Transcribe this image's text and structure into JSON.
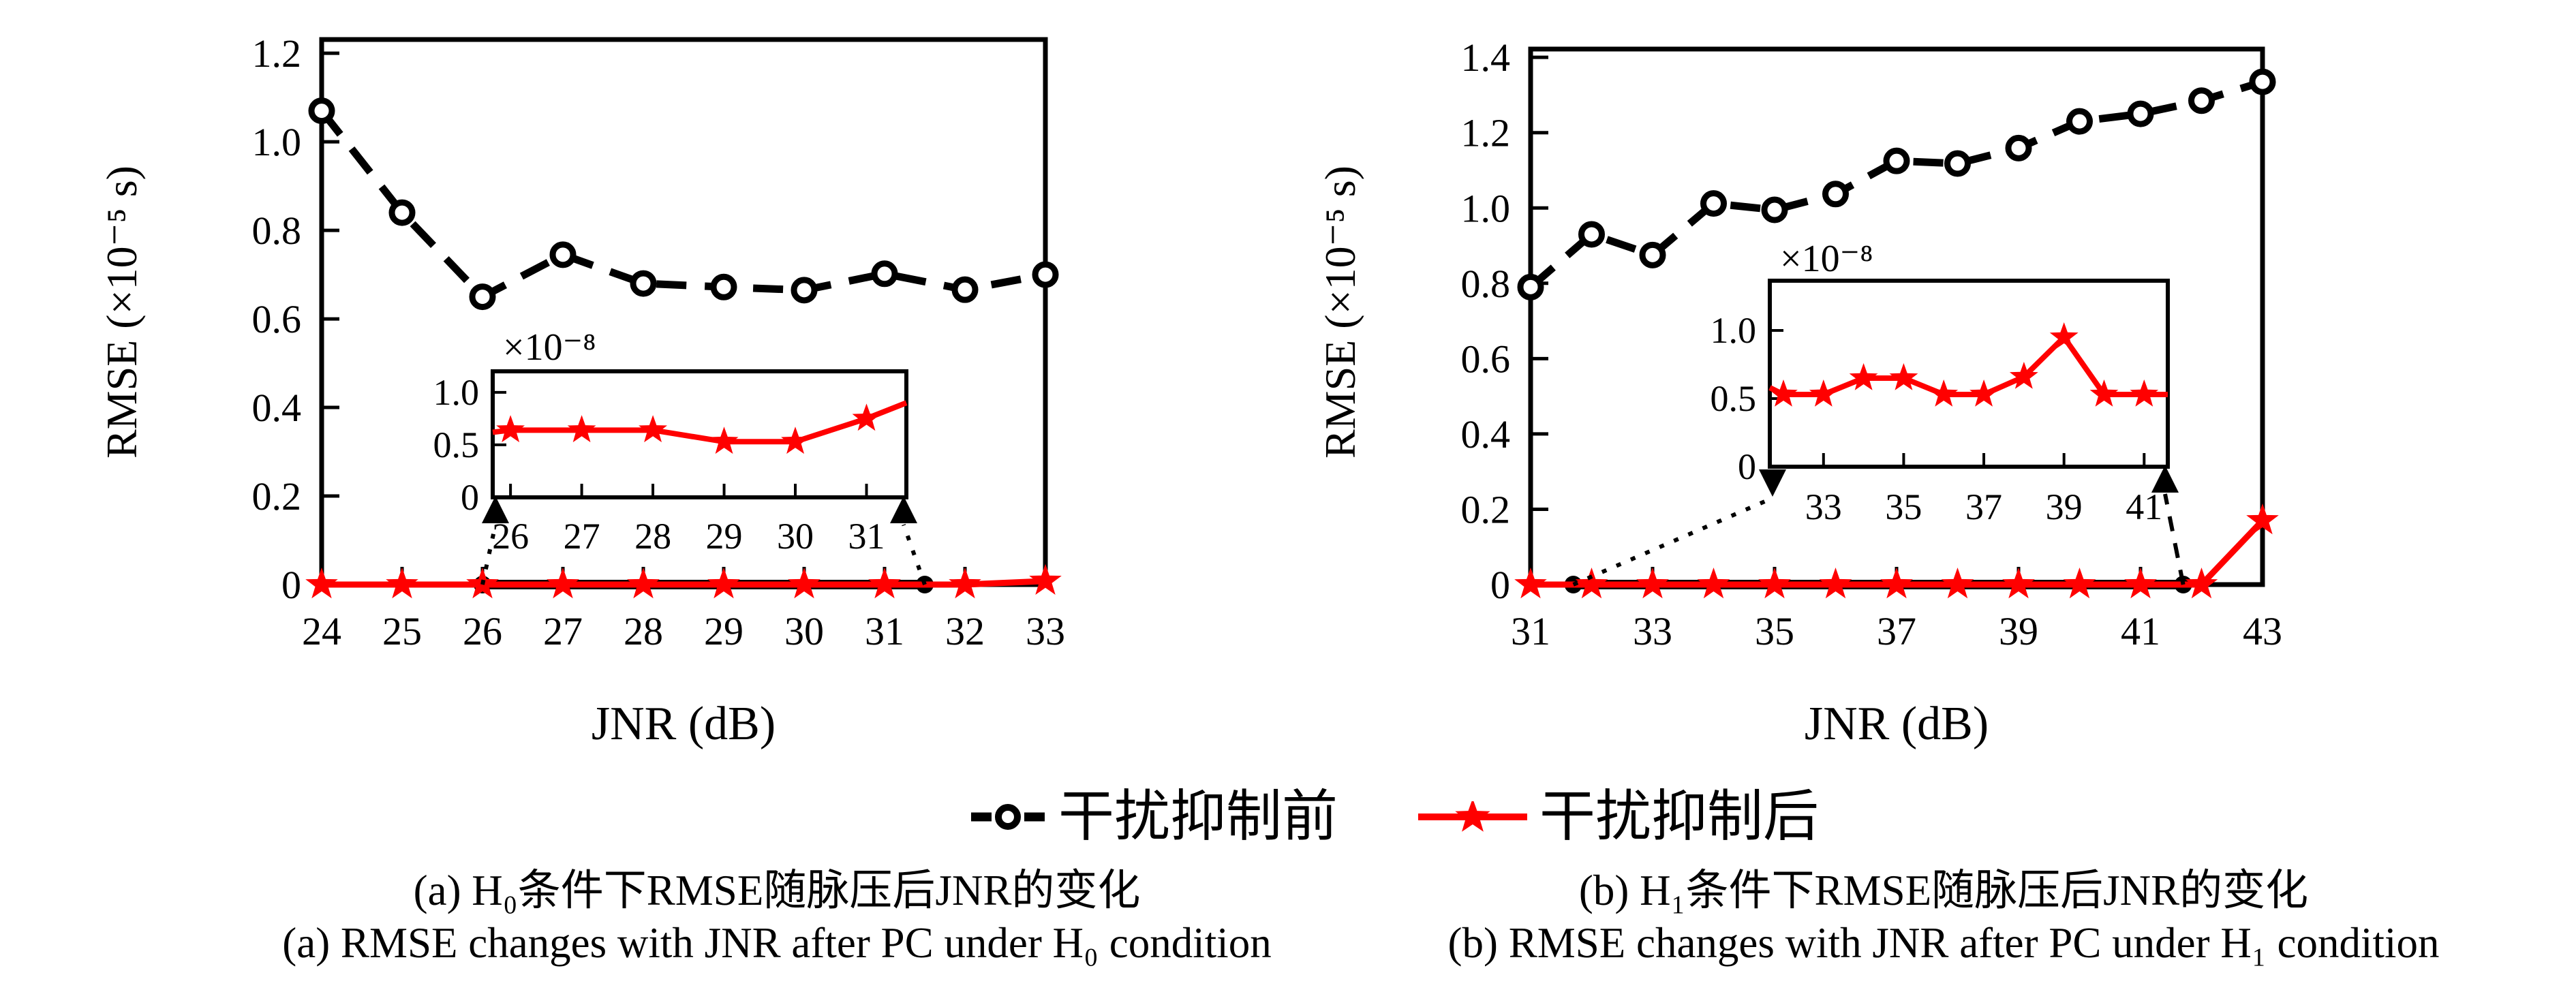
{
  "colors": {
    "black": "#000000",
    "red": "#ff0000",
    "background": "#ffffff"
  },
  "legend": {
    "items": [
      {
        "label": "干扰抑制前",
        "marker": "dashed-open-circle"
      },
      {
        "label": "干扰抑制后",
        "marker": "solid-red-star"
      }
    ]
  },
  "captions": {
    "a_zh": "(a) H₀条件下RMSE随脉压后JNR的变化",
    "a_en": "(a) RMSE changes with JNR after PC under H₀ condition",
    "b_zh": "(b) H₁条件下RMSE随脉压后JNR的变化",
    "b_en": "(b) RMSE changes with JNR after PC under H₁ condition"
  },
  "chart_data": [
    {
      "type": "line",
      "panel": "a",
      "xlabel": "JNR (dB)",
      "ylabel": "RMSE (×10⁻⁵ s)",
      "xlim": [
        24,
        33
      ],
      "ylim": [
        0,
        1.231
      ],
      "xticks": [
        24,
        25,
        26,
        27,
        28,
        29,
        30,
        31,
        32,
        33
      ],
      "yticks": [
        0,
        0.2,
        0.4,
        0.6,
        0.8,
        1.0,
        1.2
      ],
      "ytick_labels": [
        "0",
        "0.2",
        "0.4",
        "0.6",
        "0.8",
        "1.0",
        "1.2"
      ],
      "grid": false,
      "series": [
        {
          "name": "干扰抑制前",
          "style": "dashed-circle",
          "color": "#000000",
          "x": [
            24,
            25,
            26,
            27,
            28,
            29,
            30,
            31,
            32,
            33
          ],
          "y": [
            1.07,
            0.84,
            0.65,
            0.745,
            0.68,
            0.672,
            0.665,
            0.702,
            0.666,
            0.7
          ]
        },
        {
          "name": "干扰抑制后",
          "style": "solid-star",
          "color": "#ff0000",
          "x": [
            24,
            25,
            26,
            27,
            28,
            29,
            30,
            31,
            32,
            33
          ],
          "y": [
            0,
            0,
            0,
            0,
            0,
            0,
            0,
            0,
            0,
            0.008
          ]
        }
      ],
      "zoom_region": [
        26,
        31.5
      ],
      "inset": {
        "scale_label": "×10⁻⁸",
        "xlim": [
          25.75,
          31.56
        ],
        "ylim": [
          0,
          1.2
        ],
        "xticks": [
          26,
          27,
          28,
          29,
          30,
          31
        ],
        "yticks": [
          0,
          0.5,
          1.0
        ],
        "ytick_labels": [
          "0",
          "0.5",
          "1.0"
        ],
        "x": [
          26,
          27,
          28,
          29,
          30,
          31
        ],
        "y": [
          0.64,
          0.64,
          0.64,
          0.53,
          0.53,
          0.75
        ],
        "edge_start": [
          25.75,
          0.62
        ],
        "edge_end": [
          31.56,
          0.9
        ]
      }
    },
    {
      "type": "line",
      "panel": "b",
      "xlabel": "JNR (dB)",
      "ylabel": "RMSE (×10⁻⁵ s)",
      "xlim": [
        31,
        43
      ],
      "ylim": [
        0,
        1.422
      ],
      "xticks": [
        31,
        33,
        35,
        37,
        39,
        41,
        43
      ],
      "yticks": [
        0,
        0.2,
        0.4,
        0.6,
        0.8,
        1.0,
        1.2,
        1.4
      ],
      "ytick_labels": [
        "0",
        "0.2",
        "0.4",
        "0.6",
        "0.8",
        "1.0",
        "1.2",
        "1.4"
      ],
      "grid": false,
      "series": [
        {
          "name": "干扰抑制前",
          "style": "dashed-circle",
          "color": "#000000",
          "x": [
            31,
            32,
            33,
            34,
            35,
            36,
            37,
            38,
            39,
            40,
            41,
            42,
            43
          ],
          "y": [
            0.79,
            0.93,
            0.875,
            1.012,
            0.995,
            1.037,
            1.125,
            1.118,
            1.159,
            1.23,
            1.25,
            1.285,
            1.335
          ]
        },
        {
          "name": "干扰抑制后",
          "style": "solid-star",
          "color": "#ff0000",
          "x": [
            31,
            32,
            33,
            34,
            35,
            36,
            37,
            38,
            39,
            40,
            41,
            42,
            43
          ],
          "y": [
            0,
            0,
            0,
            0,
            0,
            0,
            0,
            0,
            0,
            0,
            0,
            0,
            0.17
          ]
        }
      ],
      "zoom_region": [
        31.7,
        41.7
      ],
      "inset": {
        "scale_label": "×10⁻⁸",
        "xlim": [
          31.66,
          41.59
        ],
        "ylim": [
          0,
          1.365
        ],
        "xticks": [
          33,
          35,
          37,
          39,
          41
        ],
        "yticks": [
          0,
          0.5,
          1.0
        ],
        "ytick_labels": [
          "0",
          "0.5",
          "1.0"
        ],
        "x": [
          32,
          33,
          34,
          35,
          36,
          37,
          38,
          39,
          40,
          41
        ],
        "y": [
          0.53,
          0.53,
          0.65,
          0.65,
          0.53,
          0.53,
          0.66,
          0.95,
          0.53,
          0.53
        ],
        "edge_start": [
          31.66,
          0.58
        ],
        "edge_end": [
          41.59,
          0.53
        ]
      }
    }
  ]
}
